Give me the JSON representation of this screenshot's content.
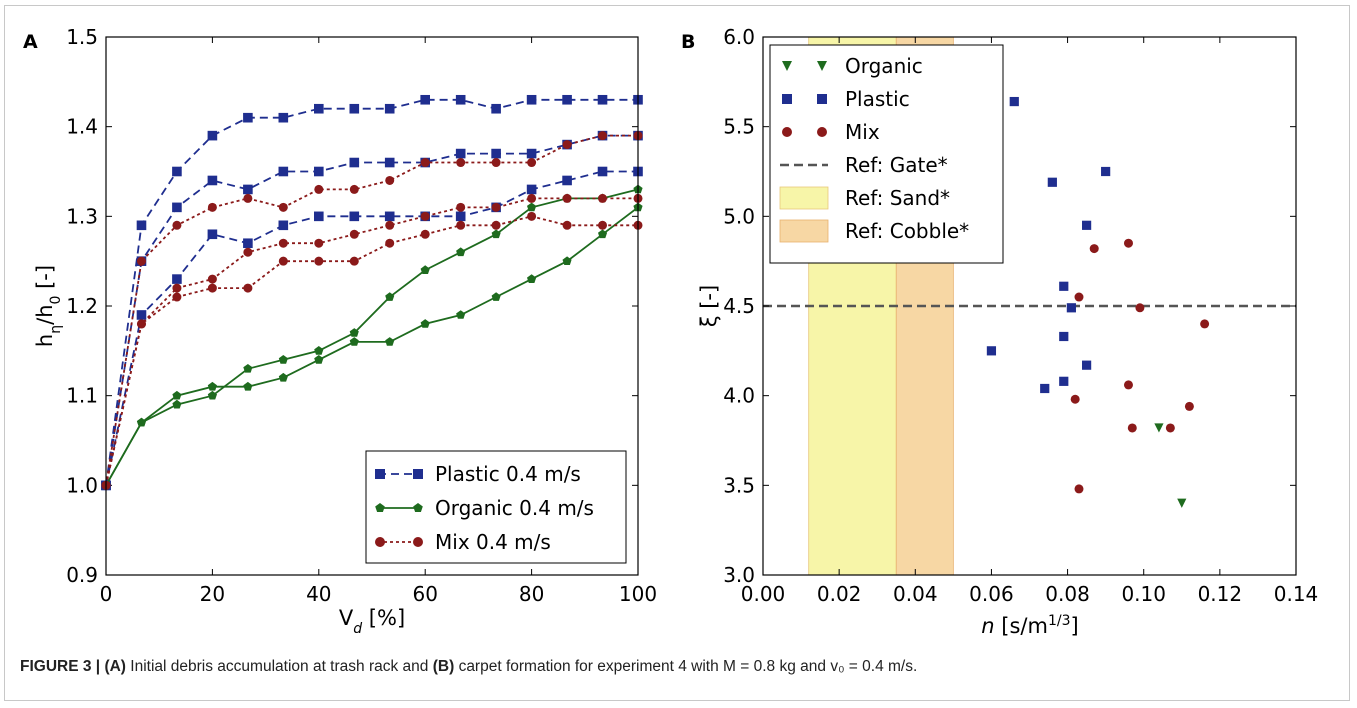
{
  "figure": {
    "caption": {
      "figure_label": "FIGURE 3 |",
      "part_a_label": "(A)",
      "part_a_text": "Initial debris accumulation at trash rack and",
      "part_b_label": "(B)",
      "part_b_text": "carpet formation for experiment 4 with M = 0.8 kg and v₀ = 0.4 m/s."
    }
  },
  "chart_data": [
    {
      "panel": "A",
      "type": "line",
      "xlabel": "V",
      "xlabel_sub": "d",
      "xlabel_unit": "[%]",
      "ylabel": "h",
      "ylabel_sub1": "η",
      "ylabel_mid": "/h",
      "ylabel_sub2": "0",
      "ylabel_unit": "[-]",
      "xlim": [
        0,
        100
      ],
      "ylim": [
        0.9,
        1.5
      ],
      "xticks": [
        0,
        20,
        40,
        60,
        80,
        100
      ],
      "yticks": [
        0.9,
        1.0,
        1.1,
        1.2,
        1.3,
        1.4,
        1.5
      ],
      "ytick_labels": [
        "0.9",
        "1.0",
        "1.1",
        "1.2",
        "1.3",
        "1.4",
        "1.5"
      ],
      "legend_position": "lower-right",
      "legend": [
        "Plastic 0.4 m/s",
        "Organic 0.4 m/s",
        "Mix 0.4 m/s"
      ],
      "x": [
        0,
        6.67,
        13.33,
        20,
        26.67,
        33.33,
        40,
        46.67,
        53.33,
        60,
        66.67,
        73.33,
        80,
        86.67,
        93.33,
        100
      ],
      "series": [
        {
          "group": "plastic",
          "color": "#1f2e8f",
          "marker": "square",
          "style": "dashed",
          "values": [
            1.0,
            1.29,
            1.35,
            1.39,
            1.41,
            1.41,
            1.42,
            1.42,
            1.42,
            1.43,
            1.43,
            1.42,
            1.43,
            1.43,
            1.43,
            1.43
          ]
        },
        {
          "group": "plastic",
          "color": "#1f2e8f",
          "marker": "square",
          "style": "dashed",
          "values": [
            1.0,
            1.25,
            1.31,
            1.34,
            1.33,
            1.35,
            1.35,
            1.36,
            1.36,
            1.36,
            1.37,
            1.37,
            1.37,
            1.38,
            1.39,
            1.39
          ]
        },
        {
          "group": "plastic",
          "color": "#1f2e8f",
          "marker": "square",
          "style": "dashed",
          "values": [
            1.0,
            1.19,
            1.23,
            1.28,
            1.27,
            1.29,
            1.3,
            1.3,
            1.3,
            1.3,
            1.3,
            1.31,
            1.33,
            1.34,
            1.35,
            1.35
          ]
        },
        {
          "group": "organic",
          "color": "#1e6b1e",
          "marker": "pentagon",
          "style": "solid",
          "values": [
            1.0,
            1.07,
            1.1,
            1.11,
            1.11,
            1.12,
            1.14,
            1.16,
            1.16,
            1.18,
            1.19,
            1.21,
            1.23,
            1.25,
            1.28,
            1.31
          ]
        },
        {
          "group": "organic",
          "color": "#1e6b1e",
          "marker": "pentagon",
          "style": "solid",
          "values": [
            1.0,
            1.07,
            1.09,
            1.1,
            1.13,
            1.14,
            1.15,
            1.17,
            1.21,
            1.24,
            1.26,
            1.28,
            1.31,
            1.32,
            1.32,
            1.33
          ]
        },
        {
          "group": "mix",
          "color": "#8b1a1a",
          "marker": "circle",
          "style": "dotted",
          "values": [
            1.0,
            1.25,
            1.29,
            1.31,
            1.32,
            1.31,
            1.33,
            1.33,
            1.34,
            1.36,
            1.36,
            1.36,
            1.36,
            1.38,
            1.39,
            1.39
          ]
        },
        {
          "group": "mix",
          "color": "#8b1a1a",
          "marker": "circle",
          "style": "dotted",
          "values": [
            1.0,
            1.18,
            1.22,
            1.23,
            1.26,
            1.27,
            1.27,
            1.28,
            1.29,
            1.3,
            1.31,
            1.31,
            1.32,
            1.32,
            1.32,
            1.32
          ]
        },
        {
          "group": "mix",
          "color": "#8b1a1a",
          "marker": "circle",
          "style": "dotted",
          "values": [
            1.0,
            1.18,
            1.21,
            1.22,
            1.22,
            1.25,
            1.25,
            1.25,
            1.27,
            1.28,
            1.29,
            1.29,
            1.3,
            1.29,
            1.29,
            1.29
          ]
        }
      ]
    },
    {
      "panel": "B",
      "type": "scatter",
      "xlabel": "n",
      "xlabel_unit_pre": "[s/m",
      "xlabel_unit_sup": "1/3",
      "xlabel_unit_post": "]",
      "ylabel": "ξ [-]",
      "xlim": [
        0.0,
        0.14
      ],
      "ylim": [
        3.0,
        6.0
      ],
      "xticks": [
        0.0,
        0.02,
        0.04,
        0.06,
        0.08,
        0.1,
        0.12,
        0.14
      ],
      "xtick_labels": [
        "0.00",
        "0.02",
        "0.04",
        "0.06",
        "0.08",
        "0.10",
        "0.12",
        "0.14"
      ],
      "yticks": [
        3.0,
        3.5,
        4.0,
        4.5,
        5.0,
        5.5,
        6.0
      ],
      "ytick_labels": [
        "3.0",
        "3.5",
        "4.0",
        "4.5",
        "5.0",
        "5.5",
        "6.0"
      ],
      "legend_position": "top-left",
      "legend": [
        "Organic",
        "Plastic",
        "Mix",
        "Ref: Gate*",
        "Ref: Sand*",
        "Ref: Cobble*"
      ],
      "reference": {
        "gate_y": 4.5,
        "sand_x": [
          0.012,
          0.035
        ],
        "cobble_x": [
          0.035,
          0.05
        ],
        "sand_color": "#f7f5a8",
        "cobble_color": "#f7d7a4",
        "gate_color": "#555555"
      },
      "series": [
        {
          "name": "Organic",
          "color": "#1e6b1e",
          "marker": "triangle-down",
          "points": [
            [
              0.104,
              3.82
            ],
            [
              0.11,
              3.4
            ]
          ]
        },
        {
          "name": "Plastic",
          "color": "#1f2e8f",
          "marker": "square",
          "points": [
            [
              0.066,
              5.64
            ],
            [
              0.076,
              5.19
            ],
            [
              0.09,
              5.25
            ],
            [
              0.085,
              4.95
            ],
            [
              0.079,
              4.61
            ],
            [
              0.081,
              4.49
            ],
            [
              0.079,
              4.33
            ],
            [
              0.06,
              4.25
            ],
            [
              0.085,
              4.17
            ],
            [
              0.079,
              4.08
            ],
            [
              0.074,
              4.04
            ]
          ]
        },
        {
          "name": "Mix",
          "color": "#8b1a1a",
          "marker": "circle",
          "points": [
            [
              0.096,
              4.85
            ],
            [
              0.087,
              4.82
            ],
            [
              0.083,
              4.55
            ],
            [
              0.099,
              4.49
            ],
            [
              0.116,
              4.4
            ],
            [
              0.096,
              4.06
            ],
            [
              0.082,
              3.98
            ],
            [
              0.112,
              3.94
            ],
            [
              0.097,
              3.82
            ],
            [
              0.107,
              3.82
            ],
            [
              0.083,
              3.48
            ]
          ]
        }
      ]
    }
  ]
}
